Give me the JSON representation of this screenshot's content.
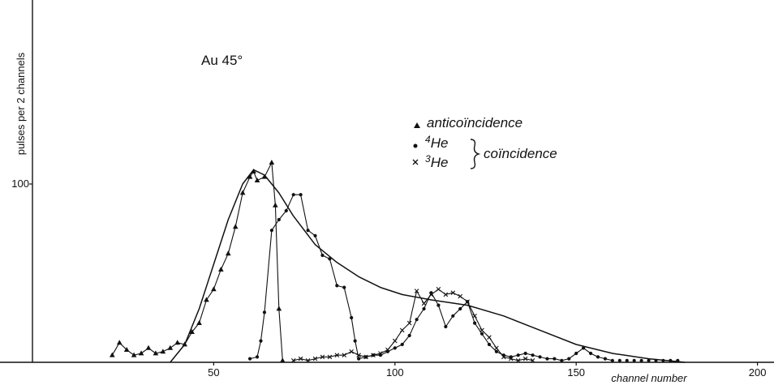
{
  "chart_data": {
    "type": "line",
    "title": "Au 45°",
    "xlabel": "channel number",
    "ylabel": "pulses per 2 channels",
    "xlim": [
      0,
      200
    ],
    "ylim": [
      0,
      200
    ],
    "x_ticks": [
      50,
      100,
      150,
      200
    ],
    "y_ticks": [
      100
    ],
    "grid": false,
    "legend": {
      "position": "top-right",
      "group_label": "coïncidence",
      "entries": [
        {
          "marker": "triangle",
          "label": "anticoïncidence"
        },
        {
          "marker": "dot",
          "label_base": "He",
          "label_sup": "4"
        },
        {
          "marker": "cross",
          "label_base": "He",
          "label_sup": "3"
        }
      ]
    },
    "series": [
      {
        "name": "anticoïncidence",
        "marker": "triangle",
        "points": [
          [
            22,
            4
          ],
          [
            24,
            11
          ],
          [
            26,
            7
          ],
          [
            28,
            4
          ],
          [
            30,
            5
          ],
          [
            32,
            8
          ],
          [
            34,
            5
          ],
          [
            36,
            6
          ],
          [
            38,
            8
          ],
          [
            40,
            11
          ],
          [
            42,
            10
          ],
          [
            44,
            17
          ],
          [
            46,
            22
          ],
          [
            48,
            35
          ],
          [
            50,
            41
          ],
          [
            52,
            52
          ],
          [
            54,
            61
          ],
          [
            56,
            76
          ],
          [
            58,
            95
          ],
          [
            60,
            104
          ],
          [
            61,
            107
          ],
          [
            62,
            102
          ],
          [
            64,
            104
          ],
          [
            66,
            112
          ],
          [
            67,
            88
          ],
          [
            68,
            30
          ],
          [
            69,
            1
          ]
        ]
      },
      {
        "name": "4He",
        "marker": "dot",
        "points": [
          [
            60,
            2
          ],
          [
            62,
            3
          ],
          [
            63,
            12
          ],
          [
            64,
            28
          ],
          [
            66,
            74
          ],
          [
            68,
            80
          ],
          [
            70,
            85
          ],
          [
            72,
            94
          ],
          [
            74,
            94
          ],
          [
            76,
            74
          ],
          [
            78,
            71
          ],
          [
            80,
            60
          ],
          [
            82,
            58
          ],
          [
            84,
            43
          ],
          [
            86,
            42
          ],
          [
            88,
            25
          ],
          [
            89,
            12
          ],
          [
            90,
            2
          ],
          [
            92,
            3
          ],
          [
            94,
            4
          ],
          [
            96,
            4
          ],
          [
            98,
            6
          ],
          [
            100,
            8
          ],
          [
            102,
            10
          ],
          [
            104,
            15
          ],
          [
            106,
            24
          ],
          [
            108,
            30
          ],
          [
            110,
            39
          ],
          [
            112,
            32
          ],
          [
            114,
            20
          ],
          [
            116,
            26
          ],
          [
            118,
            30
          ],
          [
            120,
            34
          ],
          [
            122,
            22
          ],
          [
            124,
            16
          ],
          [
            126,
            10
          ],
          [
            128,
            6
          ],
          [
            130,
            4
          ],
          [
            132,
            3
          ],
          [
            134,
            4
          ],
          [
            136,
            5
          ],
          [
            138,
            4
          ],
          [
            140,
            3
          ],
          [
            142,
            2
          ],
          [
            144,
            2
          ],
          [
            146,
            1
          ],
          [
            148,
            2
          ],
          [
            150,
            5
          ],
          [
            152,
            8
          ],
          [
            154,
            5
          ],
          [
            156,
            3
          ],
          [
            158,
            2
          ],
          [
            160,
            1
          ]
        ]
      },
      {
        "name": "3He",
        "marker": "cross",
        "points": [
          [
            72,
            1
          ],
          [
            74,
            2
          ],
          [
            76,
            1
          ],
          [
            78,
            2
          ],
          [
            80,
            3
          ],
          [
            82,
            3
          ],
          [
            84,
            4
          ],
          [
            86,
            4
          ],
          [
            88,
            6
          ],
          [
            90,
            4
          ],
          [
            92,
            3
          ],
          [
            94,
            4
          ],
          [
            96,
            5
          ],
          [
            98,
            7
          ],
          [
            100,
            12
          ],
          [
            102,
            18
          ],
          [
            104,
            22
          ],
          [
            106,
            40
          ],
          [
            108,
            33
          ],
          [
            110,
            38
          ],
          [
            112,
            41
          ],
          [
            114,
            38
          ],
          [
            116,
            39
          ],
          [
            118,
            37
          ],
          [
            120,
            34
          ],
          [
            122,
            26
          ],
          [
            124,
            18
          ],
          [
            126,
            14
          ],
          [
            128,
            8
          ],
          [
            130,
            3
          ],
          [
            132,
            2
          ],
          [
            134,
            1
          ],
          [
            136,
            2
          ],
          [
            138,
            1
          ]
        ]
      },
      {
        "name": "fit",
        "marker": "none",
        "points": [
          [
            38,
            0
          ],
          [
            42,
            10
          ],
          [
            46,
            30
          ],
          [
            50,
            55
          ],
          [
            54,
            80
          ],
          [
            58,
            100
          ],
          [
            61,
            108
          ],
          [
            64,
            105
          ],
          [
            68,
            95
          ],
          [
            72,
            82
          ],
          [
            78,
            66
          ],
          [
            84,
            56
          ],
          [
            90,
            48
          ],
          [
            96,
            42
          ],
          [
            102,
            38
          ],
          [
            110,
            35
          ],
          [
            120,
            32
          ],
          [
            130,
            26
          ],
          [
            140,
            18
          ],
          [
            150,
            10
          ],
          [
            160,
            5
          ],
          [
            170,
            2
          ],
          [
            180,
            0
          ]
        ]
      }
    ],
    "tail_points": {
      "marker": "dot",
      "points": [
        [
          162,
          1
        ],
        [
          164,
          1
        ],
        [
          166,
          1
        ],
        [
          168,
          1
        ],
        [
          170,
          1
        ],
        [
          172,
          1
        ],
        [
          174,
          1
        ],
        [
          176,
          1
        ],
        [
          178,
          1
        ]
      ]
    }
  }
}
